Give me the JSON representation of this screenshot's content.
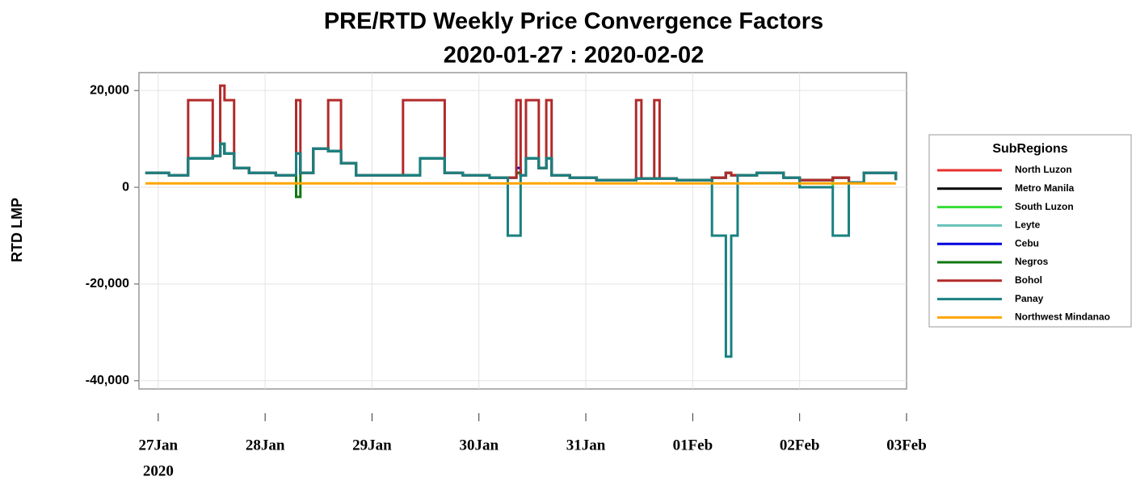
{
  "chart_data": {
    "type": "line",
    "step": true,
    "title": "PRE/RTD Weekly Price Convergence Factors",
    "subtitle": "2020-01-27 : 2020-02-02",
    "ylabel": "RTD LMP",
    "legend_title": "SubRegions",
    "legend": "right",
    "grid": true,
    "x_year_label": "2020",
    "xlim": [
      -0.18,
      7.0
    ],
    "xticks": [
      {
        "value": 0,
        "label": "27Jan"
      },
      {
        "value": 1,
        "label": "28Jan"
      },
      {
        "value": 2,
        "label": "29Jan"
      },
      {
        "value": 3,
        "label": "30Jan"
      },
      {
        "value": 4,
        "label": "31Jan"
      },
      {
        "value": 5,
        "label": "01Feb"
      },
      {
        "value": 6,
        "label": "02Feb"
      },
      {
        "value": 7,
        "label": "03Feb"
      }
    ],
    "ylim": [
      -41700,
      23700
    ],
    "yticks": [
      {
        "value": -40000,
        "label": "-40,000"
      },
      {
        "value": -20000,
        "label": "-20,000"
      },
      0,
      {
        "value": 20000,
        "label": "20,000"
      }
    ],
    "x": [
      -0.12,
      0.1,
      0.28,
      0.51,
      0.58,
      0.62,
      0.71,
      0.85,
      1.1,
      1.29,
      1.33,
      1.45,
      1.59,
      1.71,
      1.85,
      2.1,
      2.29,
      2.45,
      2.68,
      2.85,
      3.1,
      3.27,
      3.35,
      3.39,
      3.44,
      3.56,
      3.63,
      3.68,
      3.85,
      4.1,
      4.47,
      4.52,
      4.64,
      4.69,
      4.85,
      5.18,
      5.31,
      5.36,
      5.42,
      5.6,
      5.85,
      6.0,
      6.31,
      6.46,
      6.6,
      6.9
    ],
    "series": [
      {
        "name": "North Luzon",
        "color": "#e8312f",
        "values": [
          3000,
          2500,
          6000,
          6500,
          9000,
          7000,
          4000,
          3000,
          2500,
          7000,
          3000,
          8000,
          7500,
          5000,
          2500,
          2500,
          2500,
          6000,
          3000,
          2500,
          2000,
          2000,
          3000,
          2500,
          6000,
          4000,
          6000,
          2500,
          2000,
          1500,
          1800,
          1800,
          1800,
          1800,
          1500,
          2000,
          3000,
          2500,
          2500,
          3000,
          2000,
          1500,
          2000,
          1000,
          3000,
          1500
        ]
      },
      {
        "name": "Metro Manila",
        "color": "#000000",
        "values": [
          3000,
          2500,
          6000,
          6500,
          9000,
          7000,
          4000,
          3000,
          2500,
          7000,
          3000,
          8000,
          7500,
          5000,
          2500,
          2500,
          2500,
          6000,
          3000,
          2500,
          2000,
          2000,
          3000,
          2500,
          6000,
          4000,
          6000,
          2500,
          2000,
          1500,
          1800,
          1800,
          1800,
          1800,
          1500,
          2000,
          3000,
          2500,
          2500,
          3000,
          2000,
          1500,
          2000,
          1000,
          3000,
          1500
        ]
      },
      {
        "name": "South Luzon",
        "color": "#33dd33",
        "values": [
          3000,
          2500,
          6000,
          6500,
          9000,
          7000,
          4000,
          3000,
          2500,
          7000,
          3000,
          8000,
          7500,
          5000,
          2500,
          2500,
          2500,
          6000,
          3000,
          2500,
          2000,
          2000,
          3000,
          2500,
          6000,
          4000,
          6000,
          2500,
          2000,
          1500,
          1800,
          1800,
          1800,
          1800,
          1500,
          2000,
          3000,
          2500,
          2500,
          3000,
          2000,
          0,
          2000,
          1000,
          3000,
          1500
        ]
      },
      {
        "name": "Leyte",
        "color": "#66c2b8",
        "values": [
          3000,
          2500,
          6000,
          6500,
          9000,
          7000,
          4000,
          3000,
          2500,
          7000,
          3000,
          8000,
          7500,
          5000,
          2500,
          2500,
          2500,
          6000,
          3000,
          2500,
          2000,
          2000,
          3000,
          2500,
          6000,
          4000,
          6000,
          2500,
          2000,
          1500,
          1800,
          1800,
          1800,
          1800,
          1500,
          2000,
          3000,
          2500,
          2500,
          3000,
          2000,
          1500,
          2000,
          1000,
          3000,
          1500
        ]
      },
      {
        "name": "Cebu",
        "color": "#0000dd",
        "values": [
          3000,
          2500,
          6000,
          6500,
          9000,
          7000,
          4000,
          3000,
          2500,
          7000,
          3000,
          8000,
          7500,
          5000,
          2500,
          2500,
          2500,
          6000,
          3000,
          2500,
          2000,
          2000,
          4000,
          2500,
          6000,
          4000,
          6000,
          2500,
          2000,
          1500,
          1800,
          1800,
          1800,
          1800,
          1500,
          2000,
          3000,
          2500,
          2500,
          3000,
          2000,
          1500,
          2000,
          1000,
          3000,
          1500
        ]
      },
      {
        "name": "Negros",
        "color": "#117711",
        "values": [
          3000,
          2500,
          6000,
          6500,
          9000,
          7000,
          4000,
          3000,
          2500,
          -2000,
          3000,
          8000,
          7500,
          5000,
          2500,
          2500,
          2500,
          6000,
          3000,
          2500,
          2000,
          2000,
          3000,
          2500,
          6000,
          4000,
          6000,
          2500,
          2000,
          1500,
          1800,
          1800,
          1800,
          1800,
          1500,
          2000,
          3000,
          2500,
          2500,
          3000,
          2000,
          1500,
          2000,
          1000,
          3000,
          1500
        ]
      },
      {
        "name": "Bohol",
        "color": "#b22a2a",
        "values": [
          3000,
          2500,
          18000,
          6500,
          21000,
          18000,
          4000,
          3000,
          2500,
          18000,
          3000,
          8000,
          18000,
          5000,
          2500,
          2500,
          18000,
          18000,
          3000,
          2500,
          2000,
          2000,
          18000,
          2500,
          18000,
          4000,
          18000,
          2500,
          2000,
          1500,
          18000,
          1800,
          18000,
          1800,
          1500,
          2000,
          3000,
          2500,
          2500,
          3000,
          2000,
          1500,
          2000,
          1000,
          3000,
          1500
        ]
      },
      {
        "name": "Panay",
        "color": "#1a8080",
        "values": [
          3000,
          2500,
          6000,
          6500,
          9000,
          7000,
          4000,
          3000,
          2500,
          7000,
          3000,
          8000,
          7500,
          5000,
          2500,
          2500,
          2500,
          6000,
          3000,
          2500,
          2000,
          -10000,
          -10000,
          2500,
          6000,
          4000,
          6000,
          2500,
          2000,
          1500,
          1800,
          1800,
          1800,
          1800,
          1500,
          -10000,
          -35000,
          -10000,
          2500,
          3000,
          2000,
          0,
          -10000,
          1000,
          3000,
          1500
        ]
      },
      {
        "name": "Northwest Mindanao",
        "color": "#ffa500",
        "values": [
          800,
          800,
          800,
          800,
          800,
          800,
          800,
          800,
          800,
          800,
          800,
          800,
          800,
          800,
          800,
          800,
          800,
          800,
          800,
          800,
          800,
          800,
          800,
          800,
          800,
          800,
          800,
          800,
          800,
          800,
          800,
          800,
          800,
          800,
          800,
          800,
          800,
          800,
          800,
          800,
          800,
          800,
          800,
          800,
          800,
          800
        ]
      }
    ]
  }
}
